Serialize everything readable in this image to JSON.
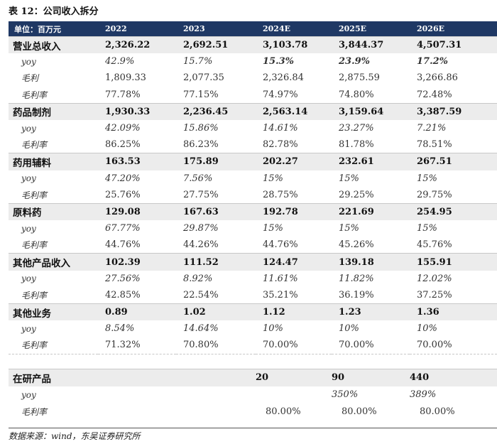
{
  "title": "表 12：公司收入拆分",
  "header": {
    "unit": "单位：百万元",
    "years": [
      "2022",
      "2023",
      "2024E",
      "2025E",
      "2026E"
    ]
  },
  "rows": [
    {
      "label": "营业总收入",
      "values": [
        "2,326.22",
        "2,692.51",
        "3,103.78",
        "3,844.37",
        "4,507.31"
      ]
    },
    {
      "label": "yoy",
      "values": [
        "42.9%",
        "15.7%",
        "15.3%",
        "23.9%",
        "17.2%"
      ]
    },
    {
      "label": "毛利",
      "values": [
        "1,809.33",
        "2,077.35",
        "2,326.84",
        "2,875.59",
        "3,266.86"
      ]
    },
    {
      "label": "毛利率",
      "values": [
        "77.78%",
        "77.15%",
        "74.97%",
        "74.80%",
        "72.48%"
      ]
    },
    {
      "label": "药品制剂",
      "values": [
        "1,930.33",
        "2,236.45",
        "2,563.14",
        "3,159.64",
        "3,387.59"
      ]
    },
    {
      "label": "yoy",
      "values": [
        "42.09%",
        "15.86%",
        "14.61%",
        "23.27%",
        "7.21%"
      ]
    },
    {
      "label": "毛利率",
      "values": [
        "86.25%",
        "86.23%",
        "82.78%",
        "81.78%",
        "78.51%"
      ]
    },
    {
      "label": "药用辅料",
      "values": [
        "163.53",
        "175.89",
        "202.27",
        "232.61",
        "267.51"
      ]
    },
    {
      "label": "yoy",
      "values": [
        "47.20%",
        "7.56%",
        "15%",
        "15%",
        "15%"
      ]
    },
    {
      "label": "毛利率",
      "values": [
        "25.76%",
        "27.75%",
        "28.75%",
        "29.25%",
        "29.75%"
      ]
    },
    {
      "label": "原料药",
      "values": [
        "129.08",
        "167.63",
        "192.78",
        "221.69",
        "254.95"
      ]
    },
    {
      "label": "yoy",
      "values": [
        "67.77%",
        "29.87%",
        "15%",
        "15%",
        "15%"
      ]
    },
    {
      "label": "毛利率",
      "values": [
        "44.76%",
        "44.26%",
        "44.76%",
        "45.26%",
        "45.76%"
      ]
    },
    {
      "label": "其他产品收入",
      "values": [
        "102.39",
        "111.52",
        "124.47",
        "139.18",
        "155.91"
      ]
    },
    {
      "label": "yoy",
      "values": [
        "27.56%",
        "8.92%",
        "11.61%",
        "11.82%",
        "12.02%"
      ]
    },
    {
      "label": "毛利率",
      "values": [
        "42.85%",
        "22.54%",
        "35.21%",
        "36.19%",
        "37.25%"
      ]
    },
    {
      "label": "其他业务",
      "values": [
        "0.89",
        "1.02",
        "1.12",
        "1.23",
        "1.36"
      ]
    },
    {
      "label": "yoy",
      "values": [
        "8.54%",
        "14.64%",
        "10%",
        "10%",
        "10%"
      ]
    },
    {
      "label": "毛利率",
      "values": [
        "71.32%",
        "70.80%",
        "70.00%",
        "70.00%",
        "70.00%"
      ]
    }
  ],
  "research": [
    {
      "label": "在研产品",
      "values": [
        "",
        "",
        "20",
        "90",
        "440"
      ]
    },
    {
      "label": "yoy",
      "values": [
        "",
        "",
        "",
        "350%",
        "389%"
      ]
    },
    {
      "label": "毛利率",
      "values": [
        "",
        "",
        "80.00%",
        "80.00%",
        "80.00%"
      ]
    }
  ],
  "source": "数据来源：wind，东吴证券研究所",
  "colors": {
    "header_bg": "#1f3864",
    "main_row_bg": "#ececec"
  }
}
